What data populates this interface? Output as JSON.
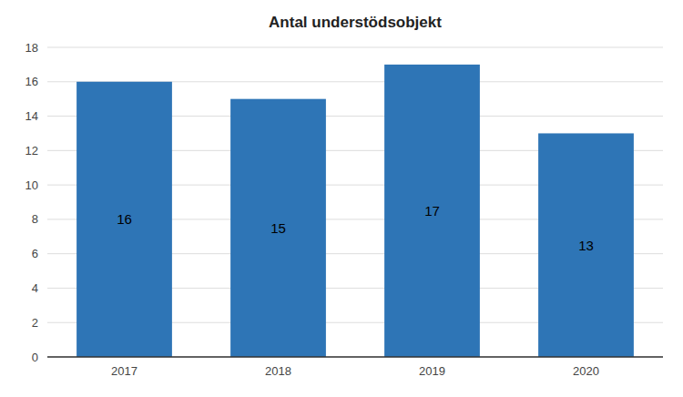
{
  "chart_data": {
    "type": "bar",
    "title": "Antal understödsobjekt",
    "categories": [
      "2017",
      "2018",
      "2019",
      "2020"
    ],
    "values": [
      16,
      15,
      17,
      13
    ],
    "color": "#2E75B6",
    "ylim": [
      0,
      18
    ],
    "yticks": [
      0,
      2,
      4,
      6,
      8,
      10,
      12,
      14,
      16,
      18
    ],
    "grid": true,
    "data_labels": true
  }
}
